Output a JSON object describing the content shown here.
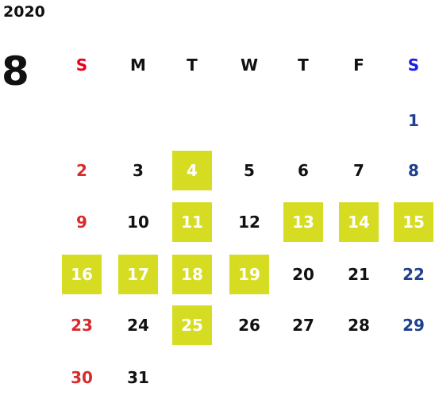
{
  "year": "2020",
  "month": "8",
  "weekdays": [
    "S",
    "M",
    "T",
    "W",
    "T",
    "F",
    "S"
  ],
  "weeks": [
    [
      null,
      null,
      null,
      null,
      null,
      null,
      1
    ],
    [
      2,
      3,
      4,
      5,
      6,
      7,
      8
    ],
    [
      9,
      10,
      11,
      12,
      13,
      14,
      15
    ],
    [
      16,
      17,
      18,
      19,
      20,
      21,
      22
    ],
    [
      23,
      24,
      25,
      26,
      27,
      28,
      29
    ],
    [
      30,
      31,
      null,
      null,
      null,
      null,
      null
    ]
  ],
  "highlighted": [
    4,
    11,
    13,
    14,
    15,
    16,
    17,
    18,
    19,
    25
  ]
}
